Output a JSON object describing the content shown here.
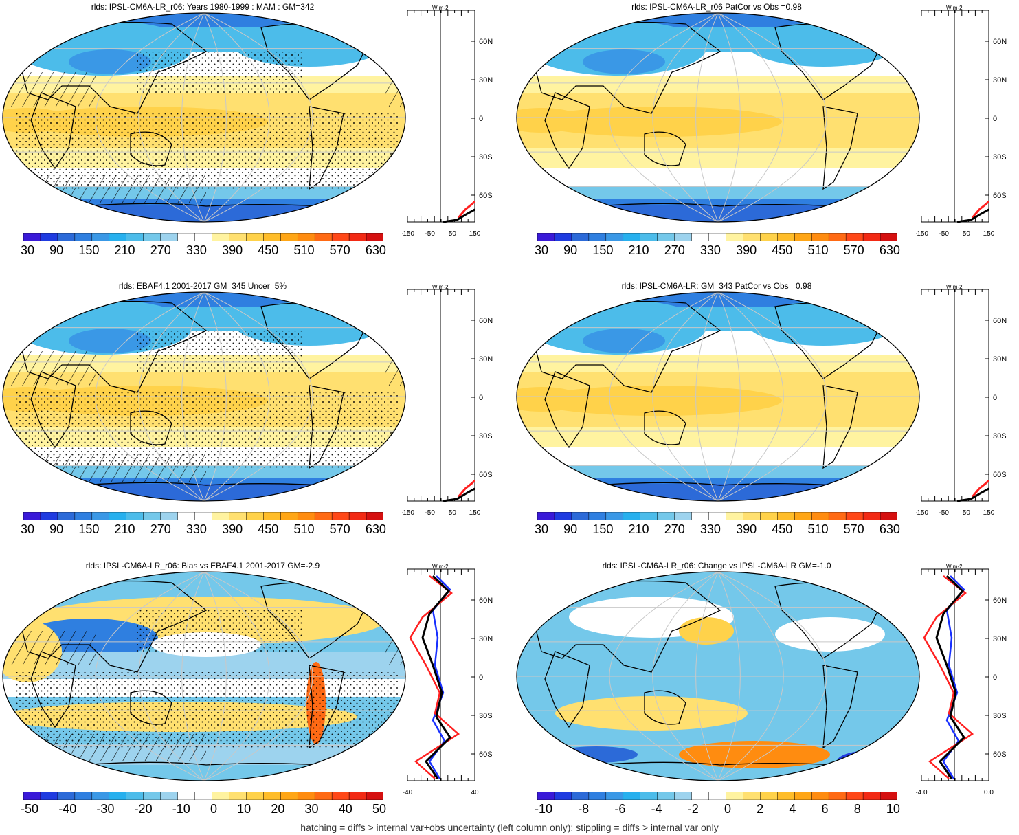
{
  "panels": [
    {
      "id": "top-left",
      "title": "rlds: IPSL-CM6A-LR_r06: Years 1980-1999 : MAM : GM=342",
      "colorbar_labels": [
        "30",
        "90",
        "150",
        "210",
        "270",
        "330",
        "390",
        "450",
        "510",
        "570",
        "630"
      ],
      "profile_xticks": [
        "-150",
        "-50",
        "50",
        "150"
      ],
      "profile_units": "W m-2",
      "profile_lines": [
        "black",
        "red"
      ],
      "hatching": true,
      "stippling": true,
      "field": "abs"
    },
    {
      "id": "top-right",
      "title": "rlds: IPSL-CM6A-LR_r06 PatCor vs Obs =0.98",
      "colorbar_labels": [
        "30",
        "90",
        "150",
        "210",
        "270",
        "330",
        "390",
        "450",
        "510",
        "570",
        "630"
      ],
      "profile_xticks": [
        "-150",
        "-50",
        "50",
        "150"
      ],
      "profile_units": "W m-2",
      "profile_lines": [
        "black",
        "red"
      ],
      "hatching": false,
      "stippling": false,
      "field": "abs"
    },
    {
      "id": "middle-left",
      "title": "rlds: EBAF4.1 2001-2017 GM=345 Uncer=5%",
      "colorbar_labels": [
        "30",
        "90",
        "150",
        "210",
        "270",
        "330",
        "390",
        "450",
        "510",
        "570",
        "630"
      ],
      "profile_xticks": [
        "-150",
        "-50",
        "50",
        "150"
      ],
      "profile_units": "W m-2",
      "profile_lines": [
        "black",
        "red"
      ],
      "hatching": true,
      "stippling": true,
      "field": "abs"
    },
    {
      "id": "middle-right",
      "title": "rlds: IPSL-CM6A-LR: GM=343 PatCor vs Obs =0.98",
      "colorbar_labels": [
        "30",
        "90",
        "150",
        "210",
        "270",
        "330",
        "390",
        "450",
        "510",
        "570",
        "630"
      ],
      "profile_xticks": [
        "-150",
        "-50",
        "50",
        "150"
      ],
      "profile_units": "W m-2",
      "profile_lines": [
        "black",
        "red"
      ],
      "hatching": false,
      "stippling": false,
      "field": "abs"
    },
    {
      "id": "bottom-left",
      "title": "rlds: IPSL-CM6A-LR_r06: Bias vs EBAF4.1 2001-2017 GM=-2.9",
      "colorbar_labels": [
        "-50",
        "-40",
        "-30",
        "-20",
        "-10",
        "0",
        "10",
        "20",
        "30",
        "40",
        "50"
      ],
      "profile_xticks": [
        "-40",
        "40"
      ],
      "profile_units": "W m-2",
      "profile_lines": [
        "black",
        "red",
        "blue"
      ],
      "hatching": true,
      "stippling": true,
      "field": "diff"
    },
    {
      "id": "bottom-right",
      "title": "rlds: IPSL-CM6A-LR_r06: Change vs IPSL-CM6A-LR GM=-1.0",
      "colorbar_labels": [
        "-10",
        "-8",
        "-6",
        "-4",
        "-2",
        "0",
        "2",
        "4",
        "6",
        "8",
        "10"
      ],
      "profile_xticks": [
        "-4.0",
        "0.0"
      ],
      "profile_units": "W m-2",
      "profile_lines": [
        "black",
        "red",
        "blue"
      ],
      "hatching": false,
      "stippling": false,
      "field": "diff"
    }
  ],
  "lat_labels": [
    "60N",
    "30N",
    "0",
    "30S",
    "60S"
  ],
  "colors": {
    "abs": [
      "#3a1ad8",
      "#1f3be0",
      "#2c6ad8",
      "#2f7fe0",
      "#3a98e6",
      "#27b0ee",
      "#4cbcea",
      "#74c8ea",
      "#9dd3ee",
      "#ffffff",
      "#ffffff",
      "#fff3a0",
      "#ffe070",
      "#ffd24a",
      "#ffbd2a",
      "#ffa616",
      "#ff8c10",
      "#ff6a14",
      "#ff4818",
      "#f22a14",
      "#d51010"
    ],
    "diff": [
      "#3a1ad8",
      "#1f3be0",
      "#2c6ad8",
      "#2f7fe0",
      "#3a98e6",
      "#27b0ee",
      "#4cbcea",
      "#74c8ea",
      "#9dd3ee",
      "#ffffff",
      "#ffffff",
      "#fff3a0",
      "#ffe070",
      "#ffd24a",
      "#ffbd2a",
      "#ffa616",
      "#ff8c10",
      "#ff6a14",
      "#ff4818",
      "#f22a14",
      "#d51010"
    ]
  },
  "footer": "hatching = diffs > internal var+obs uncertainty (left column only); stippling = diffs > internal var only"
}
